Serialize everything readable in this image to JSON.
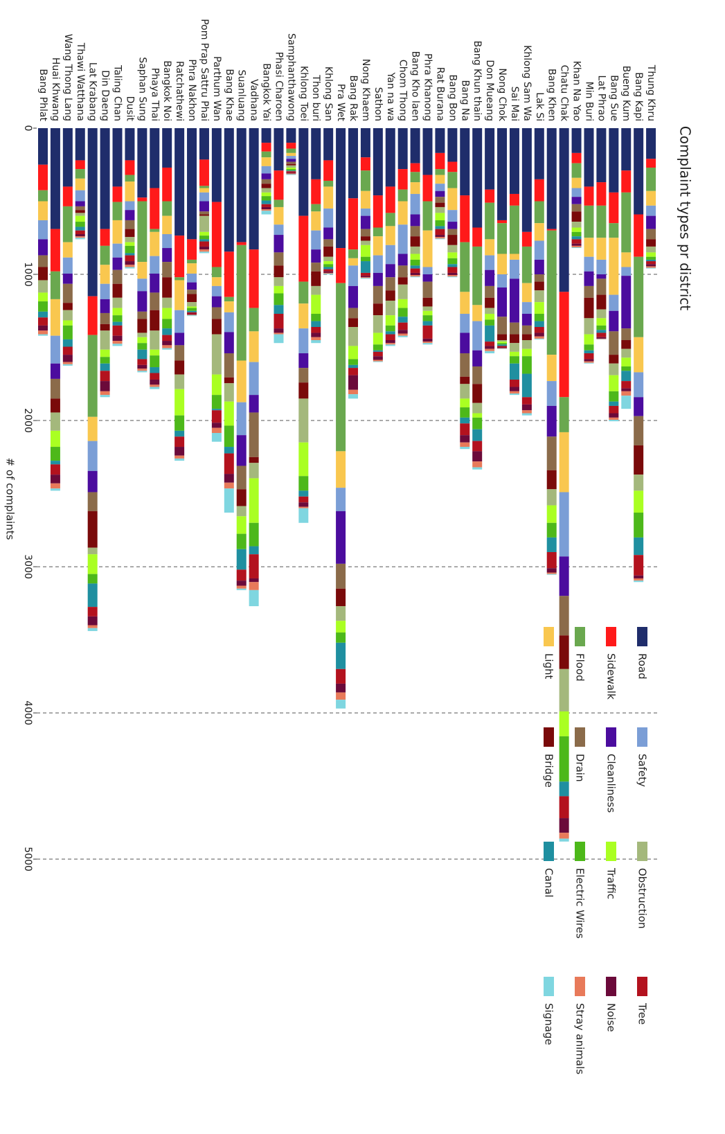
{
  "chart_data": {
    "type": "bar",
    "stacked": true,
    "title": "Complaint types pr district",
    "ylabel": "# of complaints",
    "categories": [
      "Bang Phlat",
      "Huai Khwang",
      "Wang Thong Lang",
      "Thawi Watthana",
      "Lat Krabang",
      "Din Daeng",
      "Taling Chan",
      "Dusit",
      "Saphan Sung",
      "Phaya Thai",
      "Bangkok Noi",
      "Ratchathewi",
      "Phra Nakhon",
      "Pom Prap Sattru Phai",
      "Parthum Wan",
      "Bang Khae",
      "Suanluang",
      "Vadhana",
      "Bangkok Yai",
      "Phasi Charoen",
      "Samphanthawong",
      "Khlong Toei",
      "Thon buri",
      "Khlong San",
      "Pra Wet",
      "Bang Rak",
      "Nong Khaem",
      "Sathon",
      "Yan na wa",
      "Chom Thong",
      "Bang Kho laen",
      "Phra Khanong",
      "Rat Burana",
      "Bang Bon",
      "Bang Na",
      "Bang Khun thain",
      "Don Mueang",
      "Nong Chok",
      "Sai Mai",
      "Khlong Sam Wa",
      "Lak Si",
      "Bang Khen",
      "Chatu Chak",
      "Khan Na Yao",
      "Min Buri",
      "Lat Phrao",
      "Bang Sue",
      "Bueng Kum",
      "Bang Kapi",
      "Thung Khru"
    ],
    "series": [
      {
        "name": "Road",
        "color": "#1f2d6b",
        "values": [
          250,
          690,
          400,
          220,
          1150,
          690,
          400,
          220,
          475,
          410,
          270,
          735,
          760,
          215,
          505,
          845,
          780,
          830,
          100,
          290,
          100,
          600,
          350,
          220,
          820,
          480,
          200,
          460,
          400,
          280,
          240,
          320,
          170,
          230,
          460,
          680,
          420,
          630,
          450,
          710,
          350,
          690,
          1120,
          170,
          400,
          370,
          440,
          290,
          590,
          210
        ]
      },
      {
        "name": "Sidewalk",
        "color": "#ff1a1a",
        "values": [
          175,
          290,
          135,
          60,
          265,
          115,
          105,
          100,
          25,
          280,
          230,
          285,
          140,
          180,
          445,
          310,
          20,
          400,
          60,
          200,
          40,
          450,
          170,
          140,
          240,
          350,
          90,
          220,
          180,
          140,
          60,
          180,
          110,
          70,
          320,
          130,
          90,
          20,
          80,
          100,
          150,
          10,
          720,
          70,
          130,
          160,
          210,
          150,
          290,
          60
        ]
      },
      {
        "name": "Flood",
        "color": "#6aa84f",
        "values": [
          75,
          190,
          245,
          65,
          560,
          130,
          125,
          45,
          415,
          20,
          100,
          20,
          25,
          15,
          70,
          30,
          790,
          160,
          40,
          50,
          30,
          150,
          50,
          40,
          1150,
          60,
          140,
          60,
          90,
          80,
          70,
          200,
          40,
          110,
          340,
          400,
          250,
          210,
          330,
          250,
          150,
          850,
          240,
          100,
          220,
          220,
          100,
          410,
          550,
          160
        ]
      },
      {
        "name": "Light",
        "color": "#f9c74f",
        "values": [
          130,
          250,
          105,
          80,
          165,
          130,
          160,
          135,
          115,
          165,
          125,
          205,
          70,
          30,
          60,
          75,
          285,
          210,
          60,
          120,
          20,
          170,
          130,
          150,
          250,
          50,
          120,
          130,
          130,
          160,
          80,
          250,
          60,
          150,
          150,
          110,
          110,
          140,
          40,
          130,
          120,
          180,
          410,
          70,
          130,
          150,
          390,
          100,
          240,
          100
        ]
      },
      {
        "name": "Safety",
        "color": "#7b9ed6",
        "values": [
          130,
          190,
          110,
          75,
          205,
          105,
          95,
          60,
          85,
          120,
          95,
          155,
          60,
          60,
          70,
          135,
          225,
          225,
          50,
          70,
          20,
          170,
          130,
          130,
          160,
          140,
          50,
          120,
          130,
          200,
          140,
          50,
          50,
          80,
          130,
          200,
          100,
          90,
          130,
          80,
          130,
          170,
          440,
          60,
          100,
          100,
          110,
          60,
          170,
          70
        ]
      },
      {
        "name": "Cleanliness",
        "color": "#4b0c9e",
        "values": [
          110,
          105,
          70,
          35,
          145,
          95,
          85,
          70,
          140,
          130,
          95,
          85,
          50,
          70,
          75,
          145,
          210,
          120,
          40,
          120,
          20,
          100,
          90,
          80,
          360,
          150,
          90,
          90,
          90,
          80,
          80,
          50,
          40,
          50,
          140,
          110,
          110,
          200,
          300,
          80,
          100,
          210,
          270,
          50,
          100,
          30,
          140,
          360,
          130,
          90
        ]
      },
      {
        "name": "Drain",
        "color": "#8b6b4a",
        "values": [
          80,
          135,
          130,
          25,
          130,
          75,
          95,
          60,
          50,
          120,
          105,
          105,
          30,
          20,
          80,
          165,
          160,
          305,
          30,
          90,
          15,
          100,
          60,
          50,
          170,
          70,
          50,
          120,
          90,
          80,
          70,
          110,
          40,
          40,
          160,
          120,
          80,
          120,
          80,
          60,
          50,
          230,
          270,
          50,
          80,
          110,
          160,
          80,
          200,
          70
        ]
      },
      {
        "name": "Bridge",
        "color": "#7a0a0a",
        "values": [
          90,
          95,
          50,
          20,
          250,
          45,
          95,
          55,
          95,
          140,
          140,
          95,
          55,
          10,
          105,
          40,
          115,
          40,
          30,
          80,
          10,
          110,
          100,
          70,
          120,
          60,
          30,
          80,
          70,
          50,
          70,
          60,
          30,
          70,
          50,
          130,
          70,
          40,
          60,
          40,
          60,
          130,
          230,
          70,
          140,
          100,
          60,
          60,
          200,
          50
        ]
      },
      {
        "name": "Obstruction",
        "color": "#a4b87c",
        "values": [
          85,
          125,
          70,
          20,
          45,
          130,
          70,
          35,
          30,
          130,
          70,
          100,
          30,
          110,
          275,
          125,
          70,
          105,
          30,
          60,
          15,
          300,
          60,
          30,
          100,
          130,
          30,
          120,
          100,
          100,
          50,
          30,
          40,
          50,
          100,
          70,
          40,
          10,
          60,
          60,
          80,
          110,
          290,
          40,
          110,
          60,
          80,
          60,
          110,
          40
        ]
      },
      {
        "name": "Traffic",
        "color": "#aaff22",
        "values": [
          60,
          110,
          35,
          40,
          135,
          50,
          50,
          25,
          40,
          40,
          75,
          180,
          10,
          25,
          140,
          165,
          120,
          305,
          25,
          50,
          10,
          230,
          130,
          20,
          80,
          90,
          80,
          80,
          70,
          60,
          40,
          30,
          50,
          40,
          60,
          30,
          40,
          10,
          30,
          50,
          80,
          120,
          170,
          30,
          70,
          50,
          110,
          60,
          150,
          30
        ]
      },
      {
        "name": "Electric Wires",
        "color": "#4db81a",
        "values": [
          70,
          95,
          95,
          35,
          65,
          45,
          45,
          50,
          45,
          80,
          65,
          105,
          20,
          25,
          95,
          145,
          105,
          160,
          30,
          80,
          10,
          100,
          50,
          20,
          70,
          40,
          30,
          40,
          40,
          60,
          40,
          40,
          40,
          40,
          70,
          80,
          40,
          10,
          50,
          120,
          50,
          100,
          310,
          30,
          40,
          30,
          70,
          30,
          170,
          20
        ]
      },
      {
        "name": "Canal",
        "color": "#1f8fa0",
        "values": [
          40,
          25,
          50,
          25,
          160,
          50,
          25,
          15,
          65,
          40,
          45,
          40,
          10,
          15,
          10,
          45,
          140,
          55,
          25,
          60,
          5,
          40,
          40,
          15,
          180,
          20,
          80,
          10,
          20,
          40,
          20,
          30,
          20,
          20,
          40,
          80,
          110,
          10,
          110,
          160,
          40,
          100,
          100,
          20,
          20,
          20,
          30,
          70,
          120,
          10
        ]
      },
      {
        "name": "Tree",
        "color": "#b3121e",
        "values": [
          55,
          70,
          55,
          25,
          65,
          70,
          70,
          40,
          40,
          45,
          40,
          70,
          10,
          35,
          85,
          140,
          75,
          165,
          20,
          100,
          10,
          40,
          40,
          15,
          100,
          50,
          20,
          30,
          40,
          50,
          30,
          90,
          40,
          40,
          80,
          70,
          30,
          10,
          50,
          50,
          40,
          110,
          150,
          30,
          40,
          30,
          50,
          50,
          140,
          20
        ]
      },
      {
        "name": "Noise",
        "color": "#6b0a3a",
        "values": [
          35,
          60,
          50,
          15,
          60,
          70,
          35,
          25,
          25,
          35,
          30,
          60,
          5,
          20,
          35,
          60,
          35,
          25,
          15,
          30,
          5,
          30,
          30,
          10,
          60,
          100,
          10,
          25,
          20,
          25,
          15,
          20,
          15,
          15,
          50,
          70,
          20,
          5,
          30,
          40,
          25,
          30,
          100,
          15,
          15,
          10,
          30,
          20,
          20,
          15
        ]
      },
      {
        "name": "Stray animals",
        "color": "#e87a5a",
        "values": [
          25,
          35,
          15,
          10,
          20,
          25,
          20,
          15,
          15,
          15,
          20,
          20,
          5,
          15,
          35,
          40,
          20,
          55,
          10,
          10,
          5,
          10,
          20,
          5,
          50,
          30,
          5,
          10,
          10,
          15,
          10,
          10,
          10,
          10,
          30,
          40,
          15,
          3,
          15,
          20,
          15,
          10,
          40,
          10,
          10,
          3,
          15,
          30,
          15,
          10
        ]
      },
      {
        "name": "Signage",
        "color": "#7fd6e0",
        "values": [
          10,
          15,
          10,
          10,
          20,
          15,
          15,
          10,
          10,
          15,
          10,
          15,
          5,
          10,
          60,
          165,
          10,
          110,
          25,
          60,
          5,
          100,
          20,
          5,
          60,
          30,
          5,
          5,
          10,
          10,
          5,
          10,
          5,
          5,
          15,
          15,
          15,
          2,
          10,
          15,
          5,
          5,
          20,
          5,
          5,
          2,
          10,
          90,
          10,
          5
        ]
      }
    ],
    "ylim": [
      0,
      6800
    ],
    "yticks": [
      0,
      1000,
      2000,
      3000,
      4000,
      5000
    ],
    "grid": true
  }
}
